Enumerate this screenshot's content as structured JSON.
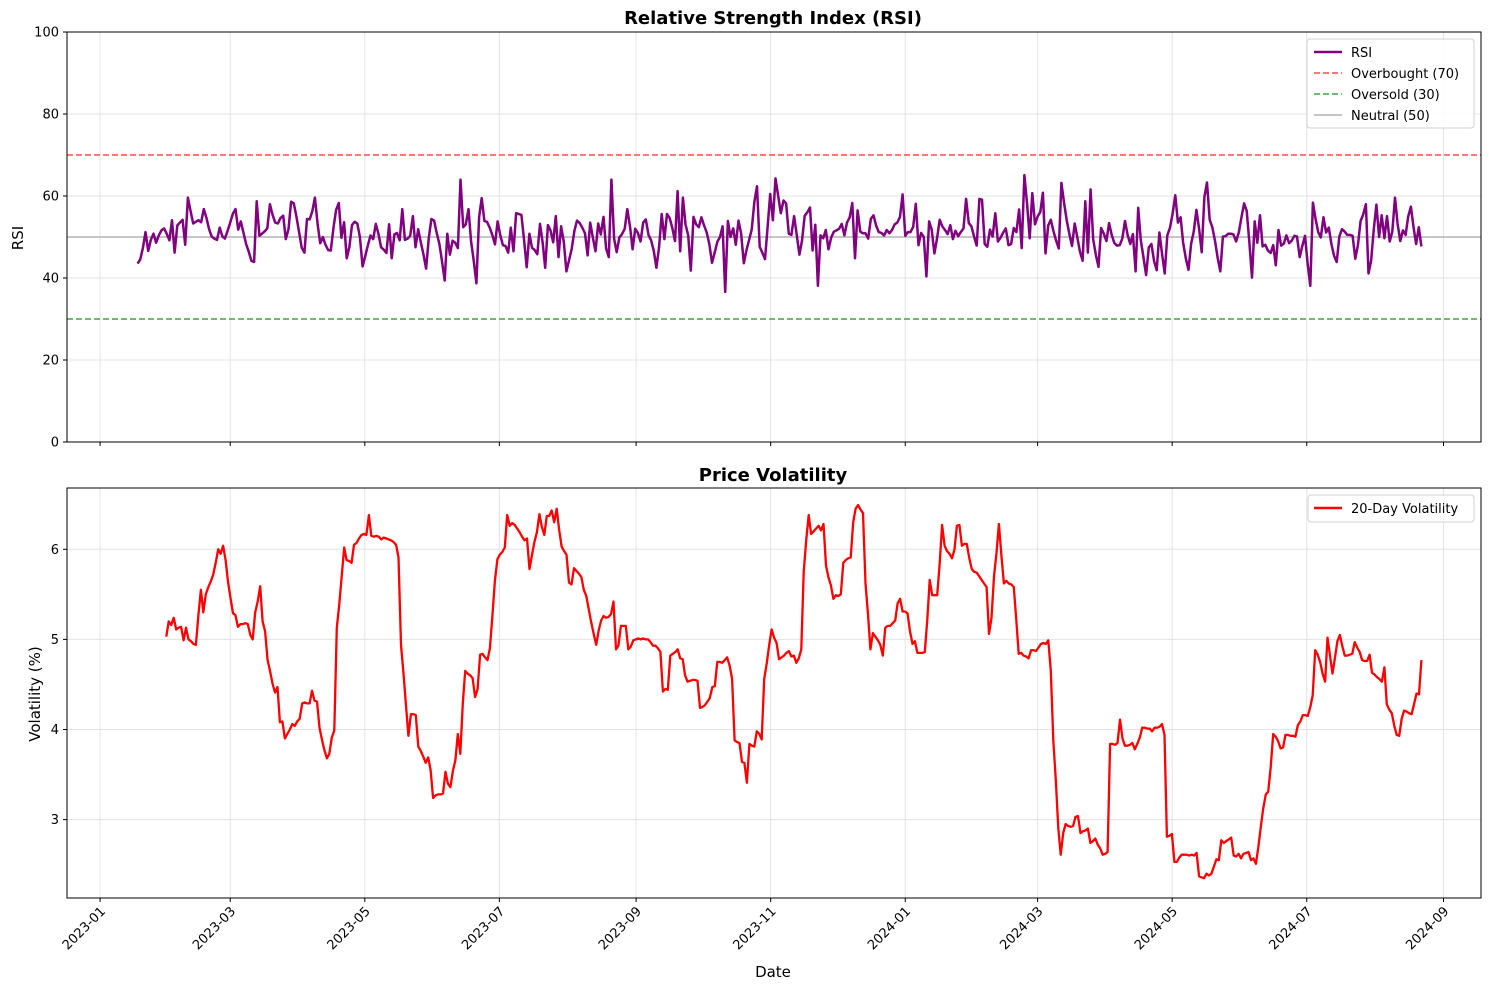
{
  "chart_data": [
    {
      "type": "line",
      "title": "Relative Strength Index (RSI)",
      "xlabel": "",
      "ylabel": "RSI",
      "ylim": [
        0,
        100
      ],
      "yticks": [
        0,
        20,
        40,
        60,
        80,
        100
      ],
      "xlim": [
        "2022-12-17",
        "2024-09-18"
      ],
      "grid": true,
      "legend_position": "top-right",
      "colors": {
        "rsi": "#800080",
        "overbought": "#ff4d4d",
        "oversold": "#3fa73f",
        "neutral": "#b3b3b3"
      },
      "series": [
        {
          "name": "RSI",
          "x_start": "2023-01-18",
          "x_end": "2024-08-22",
          "values": [
            43.5,
            44.5,
            47.3,
            51.2,
            46.6,
            49.3,
            50.8,
            48.6,
            50.4,
            51.6,
            52.1,
            50.8,
            49.2,
            54.1,
            46.2,
            52.8,
            53.5,
            54.2,
            48.1,
            59.6,
            56.4,
            53.3,
            53.7,
            54.1,
            53.6,
            56.8,
            54.7,
            51.9,
            50.1,
            49.6,
            49.3,
            52.3,
            50.2,
            49.6,
            51.5,
            53.5,
            55.7,
            56.8,
            51.8,
            53.8,
            51.0,
            48.3,
            46.4,
            44.2,
            43.9,
            58.7,
            50.3,
            50.8,
            51.4,
            52.1,
            58.0,
            55.4,
            53.5,
            53.3,
            54.6,
            55.2,
            49.5,
            51.9,
            58.6,
            58.2,
            55.0,
            51.2,
            47.4,
            46.2,
            54.4,
            54.3,
            56.3,
            59.6,
            53.2,
            48.5,
            50.0,
            48.1,
            46.8,
            46.7,
            52.3,
            56.6,
            58.3,
            49.8,
            53.6,
            44.8,
            47.6,
            52.9,
            53.7,
            53.3,
            50.0,
            42.8,
            45.3,
            48.0,
            50.4,
            49.5,
            53.2,
            50.7,
            47.5,
            46.9,
            46.1,
            53.1,
            44.8,
            50.6,
            51.0,
            49.2,
            56.8,
            49.3,
            49.6,
            50.3,
            55.1,
            47.5,
            51.9,
            48.7,
            45.7,
            42.3,
            49.8,
            54.4,
            54.0,
            51.0,
            48.3,
            44.1,
            39.4,
            50.8,
            45.7,
            49.1,
            48.6,
            47.3,
            64.0,
            52.4,
            53.1,
            56.8,
            48.9,
            44.1,
            38.7,
            54.8,
            59.5,
            53.9,
            53.7,
            52.3,
            50.5,
            48.2,
            53.8,
            50.5,
            48.0,
            47.8,
            46.2,
            52.3,
            46.5,
            55.8,
            55.6,
            55.4,
            49.2,
            42.6,
            50.8,
            47.4,
            46.8,
            45.8,
            53.2,
            48.7,
            42.5,
            52.9,
            51.6,
            48.7,
            55.1,
            45.1,
            52.6,
            48.8,
            41.6,
            44.4,
            47.1,
            51.5,
            54.0,
            53.4,
            52.3,
            50.9,
            45.5,
            53.5,
            49.8,
            46.5,
            53.3,
            50.6,
            54.9,
            47.2,
            45.1,
            64.0,
            49.6,
            46.3,
            49.9,
            50.7,
            52.0,
            56.8,
            52.6,
            47.0,
            52.0,
            51.0,
            48.9,
            53.5,
            54.3,
            50.5,
            49.2,
            46.6,
            42.5,
            47.6,
            55.6,
            49.5,
            55.6,
            54.6,
            52.2,
            49.0,
            61.2,
            46.5,
            59.6,
            53.1,
            50.4,
            41.8,
            54.9,
            53.1,
            52.4,
            54.8,
            52.8,
            51.1,
            48.2,
            43.7,
            46.2,
            48.8,
            50.0,
            52.6,
            36.6,
            53.9,
            50.0,
            52.1,
            48.1,
            54.0,
            50.9,
            43.6,
            46.7,
            49.3,
            51.8,
            58.6,
            62.4,
            47.6,
            46.2,
            44.6,
            52.4,
            60.5,
            54.1,
            64.3,
            60.0,
            55.8,
            58.9,
            58.2,
            50.8,
            50.5,
            55.1,
            50.6,
            45.7,
            49.1,
            55.2,
            56.0,
            57.2,
            46.7,
            53.0,
            38.1,
            50.4,
            49.7,
            51.7,
            47.0,
            49.8,
            51.3,
            51.6,
            52.0,
            53.2,
            50.4,
            53.5,
            54.8,
            58.3,
            44.8,
            56.5,
            51.3,
            50.9,
            50.9,
            49.6,
            54.4,
            55.3,
            52.8,
            51.2,
            51.0,
            50.4,
            51.7,
            50.9,
            51.7,
            53.1,
            53.5,
            54.9,
            60.4,
            50.3,
            51.2,
            51.2,
            52.5,
            58.1,
            48.0,
            51.0,
            50.0,
            40.4,
            53.8,
            51.8,
            46.0,
            49.6,
            54.2,
            52.6,
            51.7,
            50.7,
            52.9,
            49.5,
            51.5,
            50.2,
            51.2,
            52.1,
            59.3,
            53.4,
            52.6,
            50.1,
            47.9,
            59.3,
            59.1,
            48.3,
            47.6,
            51.8,
            50.1,
            55.8,
            48.9,
            49.8,
            51.1,
            52.1,
            48.0,
            48.3,
            52.2,
            51.2,
            56.7,
            47.3,
            65.1,
            58.3,
            49.7,
            60.7,
            53.1,
            55.0,
            56.1,
            60.8,
            46.0,
            52.8,
            54.2,
            51.4,
            49.1,
            47.2,
            63.2,
            58.3,
            54.1,
            50.7,
            47.8,
            53.3,
            49.9,
            46.4,
            44.2,
            58.7,
            46.2,
            61.6,
            49.4,
            45.7,
            42.7,
            52.2,
            50.8,
            49.0,
            53.4,
            50.5,
            48.5,
            47.9,
            48.0,
            49.6,
            53.9,
            50.5,
            48.3,
            50.7,
            41.6,
            57.1,
            49.2,
            45.0,
            40.7,
            47.5,
            48.3,
            44.1,
            41.9,
            51.1,
            46.0,
            41.1,
            50.4,
            52.3,
            55.7,
            60.2,
            53.5,
            54.8,
            48.5,
            44.8,
            42.0,
            48.3,
            51.4,
            56.6,
            52.0,
            46.3,
            59.8,
            63.3,
            54.2,
            52.4,
            49.1,
            45.0,
            41.6,
            50.1,
            50.2,
            50.8,
            50.8,
            50.6,
            48.9,
            51.1,
            54.7,
            58.2,
            56.4,
            48.6,
            40.1,
            53.8,
            48.6,
            55.3,
            47.7,
            48.1,
            46.7,
            46.1,
            48.0,
            43.1,
            51.7,
            47.9,
            48.4,
            50.4,
            48.5,
            49.1,
            50.3,
            50.1,
            45.1,
            47.8,
            50.3,
            43.6,
            38.1,
            58.4,
            54.4,
            51.2,
            49.9,
            54.8,
            51.1,
            52.3,
            48.3,
            45.4,
            43.9,
            50.2,
            51.9,
            51.3,
            50.5,
            50.5,
            50.3,
            44.7,
            48.0,
            53.9,
            55.5,
            58.0,
            41.1,
            44.2,
            51.9,
            57.9,
            50.0,
            55.3,
            49.7,
            55.1,
            48.9,
            51.3,
            59.6,
            53.2,
            49.0,
            51.6,
            50.5,
            55.0,
            57.4,
            52.5,
            48.3,
            52.4,
            47.7
          ]
        },
        {
          "name": "Overbought (70)",
          "level": 70
        },
        {
          "name": "Oversold (30)",
          "level": 30
        },
        {
          "name": "Neutral (50)",
          "level": 50
        }
      ]
    },
    {
      "type": "line",
      "title": "Price Volatility",
      "xlabel": "Date",
      "ylabel": "Volatility (%)",
      "ylim": [
        2.13,
        6.68
      ],
      "yticks": [
        3,
        4,
        5,
        6
      ],
      "xlim": [
        "2022-12-17",
        "2024-09-18"
      ],
      "xticks": [
        "2023-01",
        "2023-03",
        "2023-05",
        "2023-07",
        "2023-09",
        "2023-11",
        "2024-01",
        "2024-03",
        "2024-05",
        "2024-07",
        "2024-09"
      ],
      "grid": true,
      "legend_position": "top-right",
      "colors": {
        "volatility": "#ff0000"
      },
      "series": [
        {
          "name": "20-Day Volatility",
          "x_start": "2023-01-31",
          "x_end": "2024-08-22",
          "values": [
            5.03,
            5.2,
            5.16,
            5.24,
            5.11,
            5.13,
            5.14,
            4.99,
            5.13,
            5.0,
            4.98,
            4.95,
            4.94,
            5.27,
            5.55,
            5.3,
            5.5,
            5.58,
            5.64,
            5.72,
            5.85,
            6.0,
            5.95,
            6.04,
            5.88,
            5.64,
            5.46,
            5.29,
            5.27,
            5.14,
            5.17,
            5.17,
            5.18,
            5.17,
            5.05,
            5.0,
            5.3,
            5.42,
            5.59,
            5.2,
            5.09,
            4.77,
            4.65,
            4.51,
            4.41,
            4.47,
            4.08,
            4.09,
            3.9,
            3.95,
            4.0,
            4.06,
            4.04,
            4.09,
            4.12,
            4.29,
            4.3,
            4.29,
            4.29,
            4.43,
            4.32,
            4.31,
            4.02,
            3.89,
            3.77,
            3.68,
            3.73,
            3.91,
            3.99,
            5.13,
            5.38,
            5.7,
            6.02,
            5.88,
            5.87,
            5.85,
            6.05,
            6.07,
            6.12,
            6.16,
            6.17,
            6.16,
            6.38,
            6.15,
            6.14,
            6.15,
            6.14,
            6.11,
            6.13,
            6.12,
            6.11,
            6.1,
            6.08,
            6.05,
            5.91,
            4.94,
            4.62,
            4.28,
            3.93,
            4.17,
            4.17,
            4.16,
            3.81,
            3.76,
            3.7,
            3.63,
            3.69,
            3.55,
            3.24,
            3.27,
            3.28,
            3.28,
            3.29,
            3.53,
            3.4,
            3.36,
            3.54,
            3.66,
            3.95,
            3.73,
            4.29,
            4.65,
            4.62,
            4.6,
            4.57,
            4.36,
            4.45,
            4.83,
            4.84,
            4.8,
            4.77,
            4.9,
            5.26,
            5.65,
            5.89,
            5.94,
            5.97,
            6.02,
            6.38,
            6.26,
            6.29,
            6.27,
            6.23,
            6.19,
            6.14,
            6.1,
            6.12,
            5.78,
            5.93,
            6.08,
            6.19,
            6.39,
            6.25,
            6.16,
            6.37,
            6.37,
            6.43,
            6.3,
            6.45,
            6.22,
            6.03,
            5.98,
            5.94,
            5.63,
            5.61,
            5.79,
            5.76,
            5.73,
            5.69,
            5.55,
            5.48,
            5.33,
            5.19,
            5.06,
            4.94,
            5.1,
            5.21,
            5.26,
            5.24,
            5.25,
            5.28,
            5.42,
            4.89,
            4.93,
            5.15,
            5.15,
            5.15,
            4.89,
            4.92,
            4.99,
            5.0,
            5.01,
            5.0,
            5.01,
            5.0,
            5.0,
            4.97,
            4.93,
            4.93,
            4.9,
            4.86,
            4.42,
            4.45,
            4.44,
            4.82,
            4.84,
            4.86,
            4.89,
            4.79,
            4.78,
            4.6,
            4.53,
            4.54,
            4.55,
            4.55,
            4.54,
            4.24,
            4.25,
            4.27,
            4.31,
            4.35,
            4.47,
            4.48,
            4.75,
            4.75,
            4.74,
            4.77,
            4.8,
            4.71,
            4.56,
            3.88,
            3.86,
            3.85,
            3.64,
            3.63,
            3.41,
            3.84,
            3.82,
            3.81,
            3.98,
            3.95,
            3.89,
            4.56,
            4.73,
            4.93,
            5.11,
            5.02,
            4.96,
            4.78,
            4.8,
            4.82,
            4.85,
            4.87,
            4.81,
            4.82,
            4.74,
            4.79,
            4.89,
            5.75,
            6.1,
            6.38,
            6.17,
            6.2,
            6.23,
            6.26,
            6.21,
            6.28,
            5.82,
            5.69,
            5.6,
            5.45,
            5.49,
            5.48,
            5.5,
            5.85,
            5.88,
            5.9,
            5.91,
            6.3,
            6.45,
            6.49,
            6.44,
            6.4,
            5.62,
            5.28,
            4.89,
            5.07,
            5.03,
            4.99,
            4.94,
            4.82,
            5.13,
            5.15,
            5.15,
            5.18,
            5.21,
            5.4,
            5.45,
            5.31,
            5.31,
            5.29,
            5.09,
            4.95,
            4.98,
            4.85,
            4.85,
            4.85,
            4.86,
            5.22,
            5.66,
            5.49,
            5.49,
            5.49,
            5.83,
            6.27,
            6.04,
            5.98,
            5.95,
            5.9,
            6.0,
            6.26,
            6.27,
            6.04,
            6.06,
            6.06,
            5.9,
            5.78,
            5.75,
            5.74,
            5.7,
            5.66,
            5.62,
            5.58,
            5.06,
            5.24,
            5.7,
            5.96,
            6.28,
            5.93,
            5.62,
            5.65,
            5.62,
            5.61,
            5.58,
            5.23,
            4.84,
            4.85,
            4.82,
            4.81,
            4.79,
            4.88,
            4.88,
            4.87,
            4.91,
            4.95,
            4.96,
            4.95,
            4.99,
            4.65,
            3.88,
            3.44,
            2.92,
            2.61,
            2.85,
            2.95,
            2.93,
            2.92,
            2.93,
            3.03,
            3.04,
            2.85,
            2.87,
            2.88,
            2.9,
            2.74,
            2.76,
            2.79,
            2.72,
            2.68,
            2.61,
            2.62,
            2.64,
            3.84,
            3.84,
            3.83,
            3.85,
            4.11,
            3.9,
            3.82,
            3.82,
            3.83,
            3.85,
            3.78,
            3.84,
            3.91,
            4.02,
            4.02,
            4.01,
            4.01,
            3.98,
            4.02,
            4.02,
            4.03,
            4.06,
            3.94,
            2.81,
            2.82,
            2.84,
            2.53,
            2.53,
            2.58,
            2.61,
            2.61,
            2.61,
            2.6,
            2.61,
            2.6,
            2.63,
            2.37,
            2.36,
            2.35,
            2.4,
            2.38,
            2.4,
            2.48,
            2.56,
            2.55,
            2.77,
            2.74,
            2.76,
            2.78,
            2.8,
            2.6,
            2.59,
            2.62,
            2.57,
            2.62,
            2.63,
            2.64,
            2.55,
            2.57,
            2.51,
            2.7,
            2.92,
            3.13,
            3.28,
            3.31,
            3.58,
            3.95,
            3.92,
            3.87,
            3.79,
            3.8,
            3.94,
            3.94,
            3.93,
            3.93,
            3.92,
            4.05,
            4.09,
            4.16,
            4.16,
            4.15,
            4.25,
            4.38,
            4.88,
            4.83,
            4.75,
            4.62,
            4.53,
            5.02,
            4.82,
            4.62,
            4.8,
            4.98,
            5.05,
            4.92,
            4.82,
            4.82,
            4.83,
            4.84,
            4.97,
            4.91,
            4.86,
            4.77,
            4.76,
            4.76,
            4.83,
            4.63,
            4.61,
            4.58,
            4.56,
            4.53,
            4.69,
            4.28,
            4.22,
            4.18,
            4.04,
            3.94,
            3.93,
            4.12,
            4.21,
            4.2,
            4.18,
            4.17,
            4.28,
            4.4,
            4.39,
            4.77
          ]
        }
      ]
    }
  ]
}
